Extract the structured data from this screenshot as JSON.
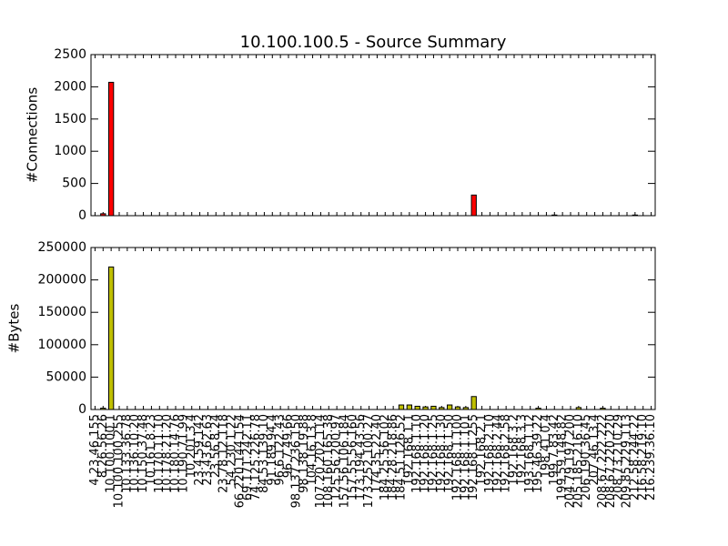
{
  "chart_data": [
    {
      "type": "bar",
      "title": "10.100.100.5 - Source Summary",
      "ylabel": "#Connections",
      "color": "#ff0000",
      "values": [
        0,
        30,
        2070,
        0,
        0,
        0,
        0,
        0,
        0,
        0,
        0,
        0,
        0,
        0,
        0,
        0,
        0,
        0,
        0,
        0,
        0,
        0,
        0,
        0,
        0,
        0,
        0,
        0,
        0,
        0,
        0,
        0,
        0,
        0,
        0,
        0,
        0,
        0,
        0,
        0,
        0,
        0,
        0,
        0,
        0,
        0,
        0,
        320,
        0,
        0,
        0,
        0,
        0,
        0,
        0,
        0,
        0,
        10,
        0,
        0,
        0,
        0,
        0,
        0,
        0,
        0,
        0,
        10,
        0,
        0
      ],
      "ylim": [
        0,
        2500
      ],
      "yticks": [
        0,
        500,
        1000,
        1500,
        2000,
        2500
      ]
    },
    {
      "type": "bar",
      "ylabel": "#Bytes",
      "color": "#bfbf00",
      "categories": [
        "4.23.46.155",
        "8.26.56.26",
        "10.100.100.1",
        "10.100.100.255",
        "10.133.36.78",
        "10.136.10.20",
        "10.150.37.48",
        "10.161.8.23",
        "10.170.11.10",
        "10.178.21.20",
        "10.180.14.76",
        "10.190.71.99",
        "10.201.3.4",
        "23.4.59.142",
        "23.43.62.63",
        "23.56.8.24",
        "23.78.12.118",
        "54.230.1.22",
        "66.220.144.154",
        "69.171.242.11",
        "74.125.226.78",
        "84.53.139.10",
        "91.189.94.4",
        "96.6.122.43",
        "96.7.49.66",
        "98.137.236.150",
        "98.138.19.88",
        "104.16.13.8",
        "107.20.202.114",
        "108.160.165.38",
        "125.56.200.97",
        "157.56.106.184",
        "157.55.56.160",
        "173.194.43.56",
        "173.252.100.27",
        "174.35.22.40",
        "184.25.56.102",
        "184.28.218.86",
        "184.51.126.52",
        "192.168.1.1",
        "192.168.1.10",
        "192.168.1.20",
        "192.168.1.25",
        "192.168.1.30",
        "192.168.1.50",
        "192.168.1.100",
        "192.168.1.101",
        "192.168.1.255",
        "192.168.2.1",
        "192.168.2.10",
        "192.168.2.44",
        "192.168.2.58",
        "192.168.3.2",
        "192.168.3.3",
        "193.168.1.12",
        "195.46.39.22",
        "198.41.0.4",
        "199.7.83.42",
        "199.59.148.82",
        "204.79.197.200",
        "205.185.216.10",
        "206.190.36.45",
        "207.46.13.4",
        "208.67.222.222",
        "208.67.220.220",
        "208.73.210.29",
        "209.85.229.113",
        "212.58.244.22",
        "216.58.219.10",
        "216.239.36.10"
      ],
      "values": [
        0,
        2000,
        220000,
        0,
        0,
        0,
        0,
        0,
        0,
        0,
        0,
        0,
        0,
        0,
        0,
        0,
        0,
        0,
        0,
        0,
        0,
        0,
        0,
        0,
        0,
        0,
        0,
        0,
        0,
        0,
        0,
        0,
        0,
        0,
        0,
        0,
        0,
        0,
        7000,
        7000,
        5000,
        4000,
        5000,
        3000,
        7000,
        4000,
        3000,
        20000,
        0,
        0,
        0,
        0,
        0,
        0,
        0,
        2000,
        0,
        0,
        0,
        0,
        3000,
        0,
        0,
        2000,
        0,
        0,
        0,
        0,
        0,
        0
      ],
      "ylim": [
        0,
        250000
      ],
      "yticks": [
        0,
        50000,
        100000,
        150000,
        200000,
        250000
      ]
    }
  ]
}
